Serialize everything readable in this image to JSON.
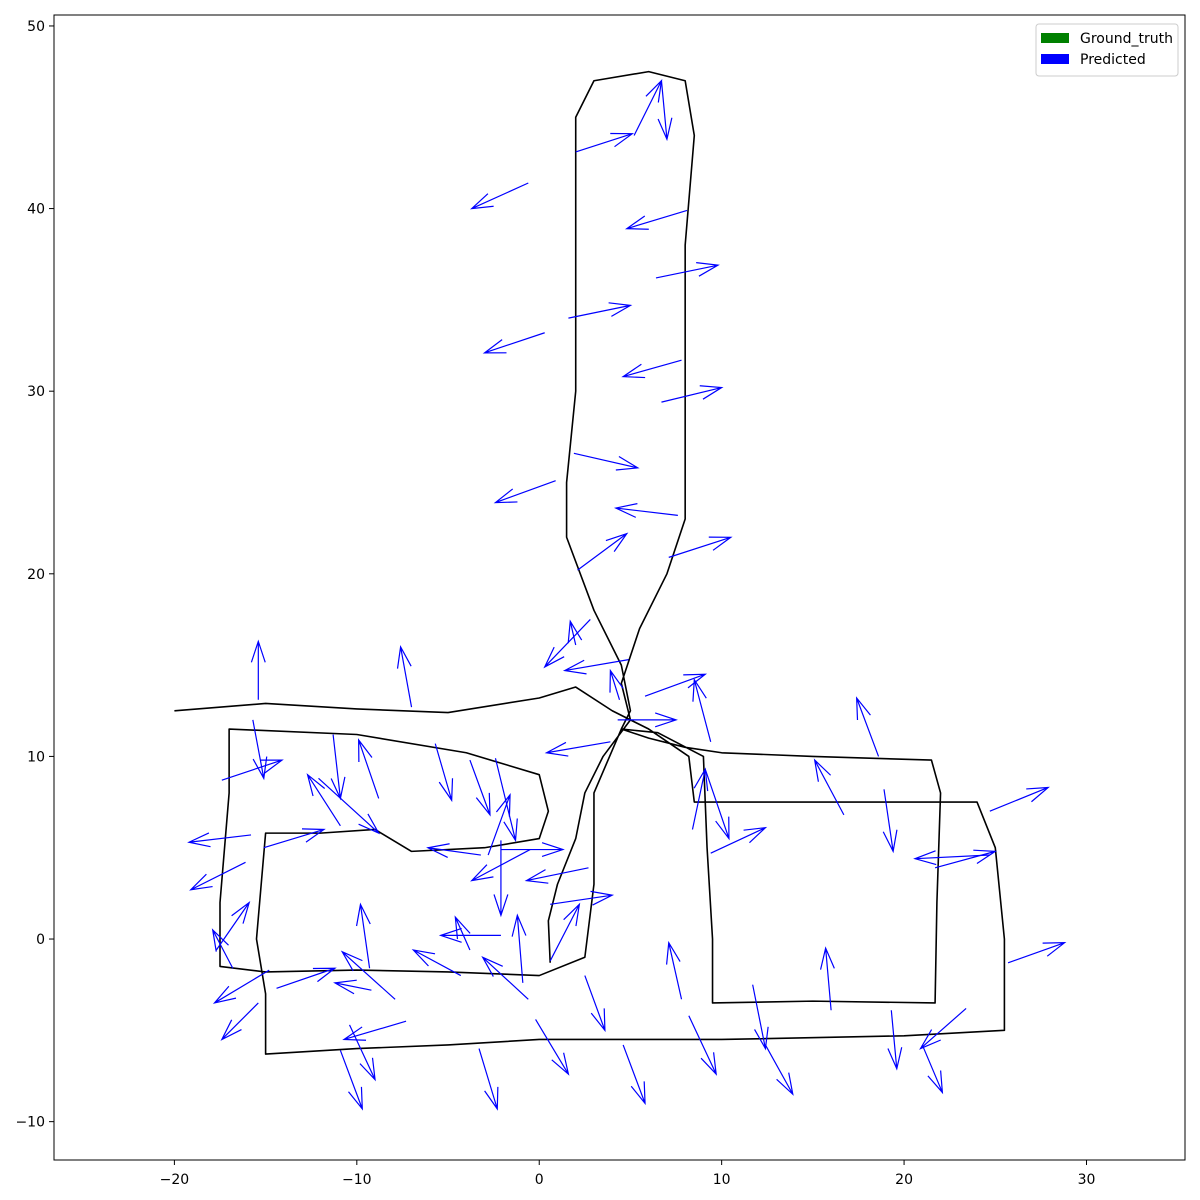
{
  "chart_data": {
    "type": "quiver",
    "xlim": [
      -26.6,
      35.4
    ],
    "ylim": [
      -12.1,
      50.6
    ],
    "xticks": [
      {
        "value": -20,
        "label": "−20"
      },
      {
        "value": -10,
        "label": "−10"
      },
      0,
      10,
      20,
      30
    ],
    "yticks": [
      {
        "value": -10,
        "label": "−10"
      },
      0,
      10,
      20,
      30,
      40,
      50
    ],
    "legend": "upper right",
    "series": [
      {
        "name": "Ground_truth",
        "color": "green",
        "line_color": "black",
        "x": [
          0.6,
          0.5,
          1,
          2,
          2.5,
          3.5,
          5,
          4.5,
          5.5,
          7,
          8,
          8,
          8,
          8.5,
          8,
          6,
          3,
          2,
          2,
          2,
          1.5,
          1.5,
          3,
          4.5,
          5,
          4.5,
          6,
          8,
          10,
          15,
          21.5,
          22,
          21.8,
          21.7,
          15,
          9.5,
          9.5,
          9.2,
          9,
          6.5,
          4.5,
          3,
          3,
          2.5,
          0,
          -5,
          -10,
          -15,
          -17.5,
          -17.5,
          -17,
          -17,
          -10,
          -4,
          0,
          0.5,
          0,
          -3,
          -7,
          -9,
          -12,
          -15,
          -15.5,
          -15,
          -15,
          -10,
          -5,
          0,
          10,
          20,
          25.5,
          25.5,
          25,
          24,
          15,
          10,
          8.5,
          8.2,
          6,
          4,
          2,
          0,
          -5,
          -10,
          -15,
          -20
        ],
        "y": [
          -1.3,
          1,
          3,
          5.5,
          8,
          10,
          12,
          14,
          17,
          20,
          23,
          30,
          38,
          44,
          47,
          47.5,
          47,
          45,
          40,
          30,
          25,
          22,
          18,
          15,
          12.5,
          11.5,
          11,
          10.5,
          10.2,
          10,
          9.8,
          8,
          2,
          -3.5,
          -3.4,
          -3.5,
          0,
          5,
          10,
          11.3,
          11.5,
          8,
          3,
          -1,
          -2,
          -1.8,
          -1.7,
          -1.8,
          -1.5,
          2,
          8,
          11.5,
          11.2,
          10.2,
          9,
          7,
          5.5,
          5,
          4.8,
          6,
          5.8,
          5.8,
          0,
          -3,
          -6.3,
          -6,
          -5.8,
          -5.5,
          -5.5,
          -5.3,
          -5,
          0,
          5,
          7.5,
          7.5,
          7.5,
          7.5,
          10,
          11.5,
          12.5,
          13.8,
          13.2,
          12.4,
          12.6,
          12.9,
          12.5
        ]
      },
      {
        "name": "Predicted",
        "color": "blue",
        "x": [
          -0.6,
          2.0,
          5.2,
          6.7,
          8.1,
          6.4,
          1.6,
          0.3,
          7.8,
          6.7,
          1.9,
          0.9,
          7.6,
          2.1,
          7.1,
          2.8,
          2.0,
          4.9,
          4.4,
          5.8,
          4.3,
          9.4,
          3.9,
          -15.4,
          -7.0,
          -15.7,
          -17.4,
          -11.3,
          -8.8,
          -5.7,
          -10.9,
          -15.8,
          -15.1,
          -16.1,
          -12.1,
          -3.8,
          -3.2,
          -2.8,
          -2.4,
          -0.5,
          -2.1,
          -2.1,
          2.7,
          0.6,
          0.6,
          -0.9,
          -2.1,
          -3.8,
          -0.6,
          -4.3,
          -9.3,
          -16.8,
          -17.7,
          -14.8,
          -14.4,
          -15.4,
          -7.9,
          -9.2,
          -7.3,
          -10.4,
          -10.9,
          -3.3,
          -0.2,
          2.5,
          4.6,
          7.8,
          8.2,
          11.7,
          12.4,
          16.0,
          19.3,
          23.4,
          21.0,
          25.7,
          24.7,
          21.7,
          24.7,
          18.6,
          18.9,
          16.7,
          9.4,
          9.1,
          8.4
        ],
        "y": [
          41.4,
          43.1,
          44.0,
          47.0,
          39.9,
          36.2,
          34.0,
          33.2,
          31.7,
          29.4,
          26.6,
          25.1,
          23.2,
          20.2,
          20.9,
          17.5,
          16.1,
          15.3,
          13.1,
          13.3,
          12.0,
          10.8,
          10.8,
          13.1,
          12.7,
          12.0,
          8.7,
          11.2,
          7.7,
          10.7,
          6.2,
          5.7,
          5.0,
          4.2,
          8.8,
          9.8,
          4.6,
          4.6,
          9.9,
          4.9,
          5.4,
          4.9,
          3.9,
          1.9,
          -1.2,
          -2.4,
          0.2,
          -0.6,
          -3.3,
          -2.0,
          -1.6,
          -1.6,
          -0.6,
          -1.7,
          -2.7,
          -3.5,
          -3.3,
          -2.8,
          -4.5,
          -4.7,
          -6.1,
          -6.0,
          -4.4,
          -2.0,
          -5.8,
          -3.3,
          -4.2,
          -2.5,
          -5.8,
          -3.9,
          -3.9,
          -3.8,
          -5.8,
          -1.3,
          7.0,
          3.9,
          4.6,
          10.0,
          8.2,
          6.8,
          4.7,
          9.3,
          6.0
        ],
        "u": [
          -3.1,
          3.1,
          1.5,
          0.3,
          -3.3,
          3.4,
          3.4,
          -3.3,
          -3.2,
          3.3,
          3.5,
          -3.3,
          -3.4,
          2.7,
          3.4,
          -2.5,
          -0.3,
          -3.5,
          -0.5,
          3.3,
          3.2,
          -0.9,
          -3.5,
          0,
          -0.6,
          0.6,
          3.3,
          0.4,
          -1.1,
          0.9,
          -1.8,
          -3.4,
          3.3,
          -3.0,
          3.3,
          1.1,
          -2.9,
          1.2,
          1.1,
          -3.2,
          0,
          3.4,
          -3.4,
          3.4,
          1.6,
          -0.3,
          -3.3,
          -0.8,
          -2.5,
          -2.6,
          -0.5,
          -1.1,
          1.8,
          -3.0,
          3.2,
          -2.0,
          -2.9,
          -2.0,
          -3.4,
          1.4,
          1.2,
          1.0,
          1.8,
          1.1,
          1.2,
          -0.7,
          1.5,
          0.7,
          1.5,
          -0.3,
          0.3,
          -2.5,
          1.1,
          3.1,
          3.2,
          3.3,
          -4.1,
          -1.2,
          0.5,
          -1.6,
          3.0,
          1.3,
          0.7
        ],
        "v": [
          -1.4,
          1.0,
          3.0,
          -3.2,
          -1.0,
          0.7,
          0.7,
          -1.1,
          -0.9,
          0.8,
          -0.8,
          -1.2,
          0.4,
          2.0,
          1.1,
          -2.6,
          1.3,
          -0.6,
          1.6,
          1.2,
          0,
          3.4,
          -0.6,
          3.2,
          3.3,
          -3.2,
          1.1,
          -3.5,
          3.2,
          -3.1,
          2.8,
          -0.4,
          1.0,
          -1.5,
          -3.0,
          -3.0,
          0.4,
          3.3,
          -4.5,
          -1.7,
          -4.1,
          0,
          -0.7,
          0.5,
          3.1,
          3.7,
          0,
          1.8,
          2.3,
          1.4,
          3.5,
          2.1,
          2.6,
          -1.8,
          1.1,
          -2.0,
          2.6,
          0.4,
          -1.0,
          -3.0,
          -3.2,
          -3.3,
          -3.0,
          -3.0,
          -3.2,
          3.1,
          -3.2,
          -3.5,
          -2.7,
          3.4,
          -3.2,
          -2.2,
          -2.6,
          1.1,
          1.3,
          0.9,
          -0.2,
          3.2,
          -3.4,
          3.0,
          1.4,
          -3.8,
          3.3
        ]
      }
    ]
  }
}
